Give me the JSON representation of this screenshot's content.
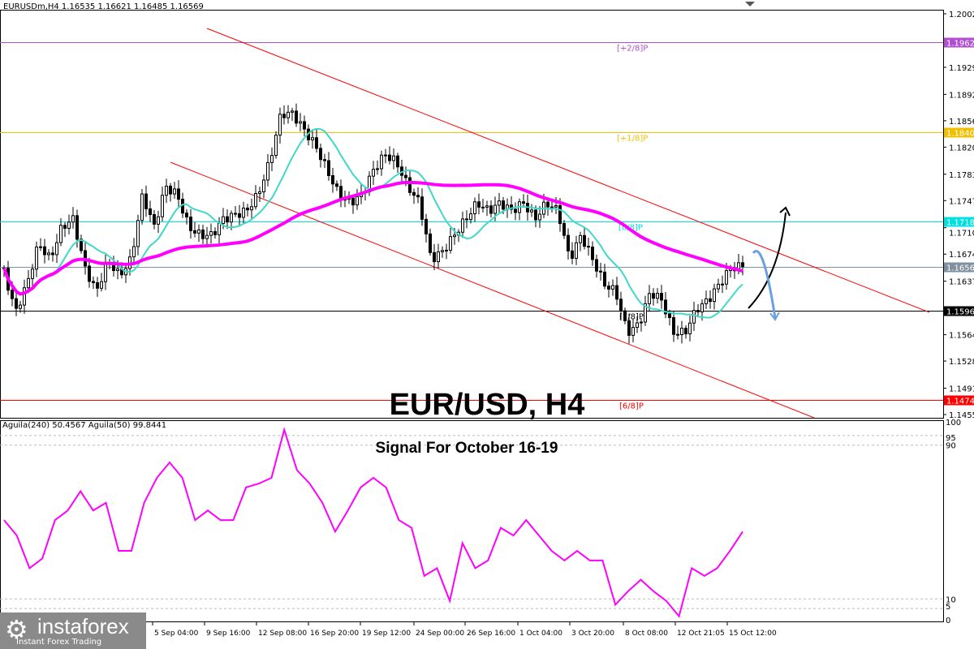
{
  "header": {
    "symbol": "EURUSDm,H4  1.16535 1.16621 1.16485 1.16569"
  },
  "indicator": {
    "label": "Aguila(240) 50.4567   Aguila(50) 99.8441"
  },
  "overlay": {
    "title": "EUR/USD, H4",
    "subtitle": "Signal For October 16-19"
  },
  "logo": {
    "name": "instaforex",
    "tagline": "Instant Forex Trading"
  },
  "chart_data": [
    {
      "type": "candlestick",
      "ylim": [
        1.1455,
        1.2002
      ],
      "yticks": [
        "1.20020",
        "1.19290",
        "1.18920",
        "1.18560",
        "1.18200",
        "1.17830",
        "1.17470",
        "1.17100",
        "1.16740",
        "1.16370",
        "1.15640",
        "1.15280",
        "1.14910",
        "1.14550"
      ],
      "xticks": [
        "5 Sep 04:00",
        "9 Sep 16:00",
        "12 Sep 08:00",
        "16 Sep 20:00",
        "19 Sep 12:00",
        "24 Sep 00:00",
        "26 Sep 16:00",
        "1 Oct 04:00",
        "3 Oct 20:00",
        "8 Oct 08:00",
        "12 Oct 21:05",
        "15 Oct 12:00"
      ],
      "closes": [
        1.165,
        1.15946,
        1.16334,
        1.16887,
        1.16666,
        1.17109,
        1.17219,
        1.16555,
        1.16223,
        1.16666,
        1.16444,
        1.16666,
        1.17551,
        1.17109,
        1.17662,
        1.17551,
        1.17109,
        1.16998,
        1.16998,
        1.17219,
        1.17275,
        1.1733,
        1.17551,
        1.17994,
        1.18658,
        1.18658,
        1.18437,
        1.18216,
        1.17883,
        1.17551,
        1.17441,
        1.17551,
        1.17883,
        1.18105,
        1.17994,
        1.17662,
        1.17441,
        1.16666,
        1.16776,
        1.16998,
        1.17219,
        1.17441,
        1.1733,
        1.17441,
        1.1733,
        1.17441,
        1.17219,
        1.17441,
        1.1733,
        1.16666,
        1.16998,
        1.16666,
        1.16334,
        1.16223,
        1.15669,
        1.1578,
        1.16223,
        1.16112,
        1.15669,
        1.15669,
        1.1599,
        1.16112,
        1.16334,
        1.16555,
        1.16569
      ],
      "levels": [
        {
          "label": "[+2/8]P",
          "value": "1.19629",
          "color": "#b050d0"
        },
        {
          "label": "[+1/8]P",
          "value": "1.18408",
          "color": "#f0c000"
        },
        {
          "label": "[8/8]P",
          "value": "1.17188",
          "color": "#00e0e0"
        },
        {
          "label": "",
          "value": "1.16569",
          "color": "#8090a0"
        },
        {
          "label": "[7/8]P",
          "value": "1.15967",
          "color": "#000000"
        },
        {
          "label": "[6/8]P",
          "value": "1.14746",
          "color": "#ff0000"
        }
      ],
      "colors": {
        "bull": "#00a000",
        "bear": "#d00000",
        "ma_fast": "#40d8c8",
        "ma_slow": "#ff00ff",
        "channel": "#ff0000"
      }
    },
    {
      "type": "line",
      "ylim": [
        0,
        100
      ],
      "yticks": [
        "100",
        "95",
        "90",
        "10",
        "5",
        "0"
      ],
      "series": [
        {
          "color": "#ff00ff",
          "values": [
            51,
            43,
            26,
            31,
            51,
            56,
            66,
            56,
            60,
            35,
            35,
            60,
            73,
            81,
            73,
            51,
            56,
            51,
            51,
            68,
            70,
            73,
            98,
            77,
            70,
            60,
            45,
            56,
            68,
            73,
            68,
            51,
            47,
            22,
            26,
            9,
            39,
            26,
            30,
            47,
            43,
            51,
            43,
            35,
            30,
            35,
            30,
            30,
            7,
            14,
            20,
            14,
            9,
            1,
            26,
            22,
            26,
            35,
            45
          ]
        }
      ]
    }
  ]
}
